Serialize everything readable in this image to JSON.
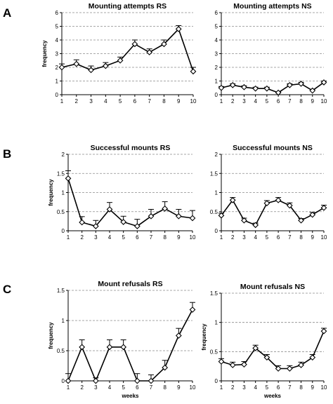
{
  "row_labels": [
    "A",
    "B",
    "C"
  ],
  "chart_data": [
    {
      "type": "line",
      "row": "A",
      "title": "Mounting attempts RS",
      "ylabel": "frequency",
      "xlabel": "",
      "x": [
        1,
        2,
        3,
        4,
        5,
        6,
        7,
        8,
        9,
        10
      ],
      "values": [
        2.0,
        2.25,
        1.8,
        2.1,
        2.5,
        3.7,
        3.1,
        3.7,
        4.8,
        1.7
      ],
      "error": [
        0.25,
        0.3,
        0.3,
        0.25,
        0.25,
        0.3,
        0.25,
        0.3,
        0.25,
        0.3
      ],
      "ylim": [
        0,
        6
      ],
      "yticks": [
        0,
        1,
        2,
        3,
        4,
        5,
        6
      ],
      "grid": true
    },
    {
      "type": "line",
      "row": "A",
      "title": "Mounting attempts NS",
      "ylabel": "",
      "xlabel": "",
      "x": [
        1,
        2,
        3,
        4,
        5,
        6,
        7,
        8,
        9,
        10
      ],
      "values": [
        0.5,
        0.7,
        0.55,
        0.45,
        0.45,
        0.15,
        0.7,
        0.8,
        0.3,
        0.9
      ],
      "error": [
        0.1,
        0.1,
        0.1,
        0.1,
        0.1,
        0.05,
        0.1,
        0.1,
        0.1,
        0.1
      ],
      "ylim": [
        0,
        6
      ],
      "yticks": [
        0,
        1,
        2,
        3,
        4,
        5,
        6
      ],
      "grid": true
    },
    {
      "type": "line",
      "row": "B",
      "title": "Successful mounts RS",
      "ylabel": "frequency",
      "xlabel": "",
      "x": [
        1,
        2,
        3,
        4,
        5,
        6,
        7,
        8,
        9,
        10
      ],
      "values": [
        1.37,
        0.22,
        0.12,
        0.56,
        0.23,
        0.12,
        0.38,
        0.58,
        0.38,
        0.33
      ],
      "error": [
        0.2,
        0.15,
        0.15,
        0.18,
        0.15,
        0.18,
        0.18,
        0.18,
        0.18,
        0.2
      ],
      "ylim": [
        0,
        2
      ],
      "yticks": [
        0,
        0.5,
        1,
        1.5,
        2
      ],
      "grid": true
    },
    {
      "type": "line",
      "row": "B",
      "title": "Successful mounts NS",
      "ylabel": "",
      "xlabel": "",
      "x": [
        1,
        2,
        3,
        4,
        5,
        6,
        7,
        8,
        9,
        10
      ],
      "values": [
        0.4,
        0.8,
        0.27,
        0.15,
        0.72,
        0.8,
        0.66,
        0.27,
        0.42,
        0.6
      ],
      "error": [
        0.06,
        0.07,
        0.06,
        0.05,
        0.07,
        0.07,
        0.07,
        0.05,
        0.06,
        0.07
      ],
      "ylim": [
        0,
        2
      ],
      "yticks": [
        0,
        0.5,
        1,
        1.5,
        2
      ],
      "grid": true
    },
    {
      "type": "line",
      "row": "C",
      "title": "Mount refusals RS",
      "ylabel": "frequency",
      "xlabel": "weeks",
      "x": [
        1,
        2,
        3,
        4,
        5,
        6,
        7,
        8,
        9,
        10
      ],
      "values": [
        0.0,
        0.56,
        0.0,
        0.56,
        0.56,
        0.0,
        0.0,
        0.22,
        0.75,
        1.18
      ],
      "error": [
        0.12,
        0.12,
        0.05,
        0.12,
        0.12,
        0.12,
        0.1,
        0.12,
        0.12,
        0.12
      ],
      "ylim": [
        0,
        1.5
      ],
      "yticks": [
        0,
        0.5,
        1,
        1.5
      ],
      "grid": true
    },
    {
      "type": "line",
      "row": "C",
      "title": "Mount refusals NS",
      "ylabel": "frequency",
      "xlabel": "weeks",
      "x": [
        1,
        2,
        3,
        4,
        5,
        6,
        7,
        8,
        9,
        10
      ],
      "values": [
        0.33,
        0.27,
        0.28,
        0.56,
        0.4,
        0.21,
        0.21,
        0.27,
        0.4,
        0.85
      ],
      "error": [
        0.05,
        0.05,
        0.05,
        0.05,
        0.05,
        0.05,
        0.05,
        0.05,
        0.05,
        0.05
      ],
      "ylim": [
        0,
        1.5
      ],
      "yticks": [
        0,
        0.5,
        1,
        1.5
      ],
      "grid": true
    }
  ]
}
